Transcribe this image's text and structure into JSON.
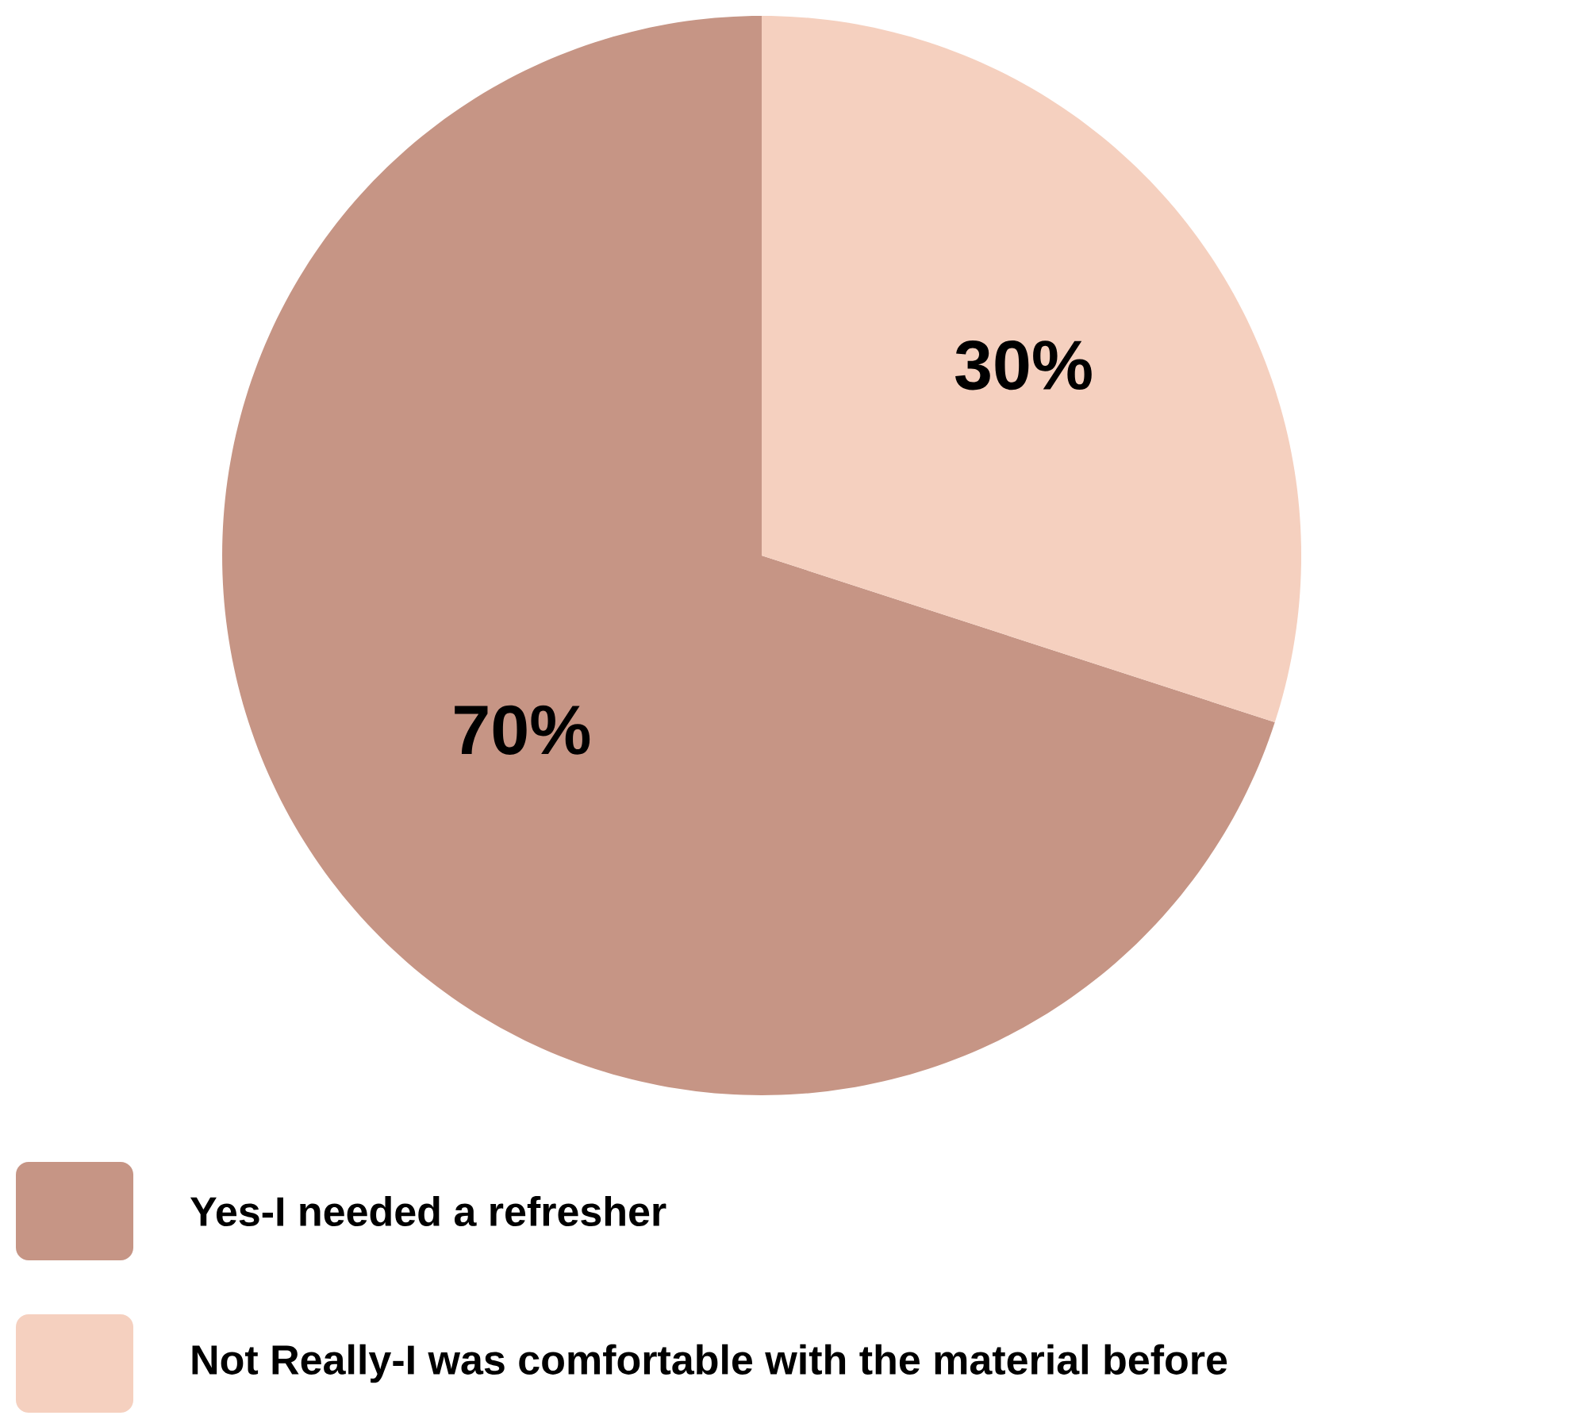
{
  "chart_data": {
    "type": "pie",
    "categories": [
      "Yes-I needed a refresher",
      "Not Really-I was comfortable with the material before"
    ],
    "values": [
      70,
      30
    ],
    "colors": [
      "#c69585",
      "#f5d0bf"
    ],
    "value_labels": [
      "70%",
      "30%"
    ],
    "legend": "bottom"
  }
}
